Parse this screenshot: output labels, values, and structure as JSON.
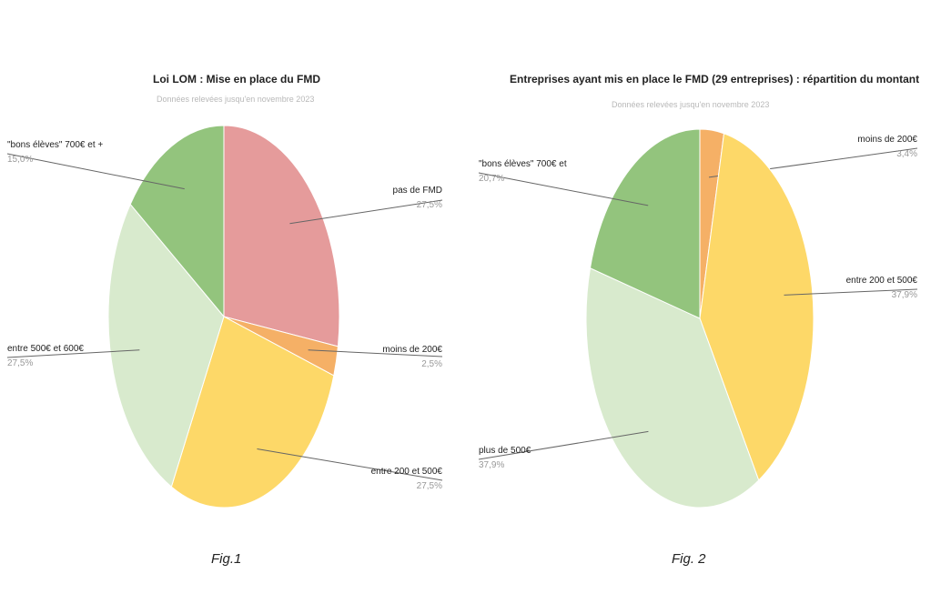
{
  "chart_data": [
    {
      "type": "pie",
      "title": "Loi LOM : Mise en place du FMD",
      "subtitle": "Données relevées jusqu'en novembre 2023",
      "caption": "Fig.1",
      "slices": [
        {
          "label": "pas de FMD",
          "value": 27.5,
          "display": "27,5%",
          "color": "#e59b9b"
        },
        {
          "label": "moins de 200€",
          "value": 2.5,
          "display": "2,5%",
          "color": "#f5b066"
        },
        {
          "label": "entre 200 et 500€",
          "value": 27.5,
          "display": "27,5%",
          "color": "#fdd868"
        },
        {
          "label": "entre 500€ et 600€",
          "value": 27.5,
          "display": "27,5%",
          "color": "#d8eacd"
        },
        {
          "label": "\"bons élèves\" 700€ et +",
          "value": 15.0,
          "display": "15,0%",
          "color": "#93c47d"
        }
      ]
    },
    {
      "type": "pie",
      "title": "Entreprises ayant mis en place le FMD (29 entreprises) : répartition du montant",
      "subtitle": "Données relevées jusqu'en novembre 2023",
      "caption": "Fig. 2",
      "slices": [
        {
          "label": "moins de 200€",
          "value": 3.4,
          "display": "3,4%",
          "color": "#f5b066"
        },
        {
          "label": "entre 200 et 500€",
          "value": 37.9,
          "display": "37,9%",
          "color": "#fdd868"
        },
        {
          "label": "plus de 500€",
          "value": 37.9,
          "display": "37,9%",
          "color": "#d8eacd"
        },
        {
          "label": "\"bons élèves\" 700€ et",
          "value": 20.7,
          "display": "20,7%",
          "color": "#93c47d"
        }
      ]
    }
  ]
}
